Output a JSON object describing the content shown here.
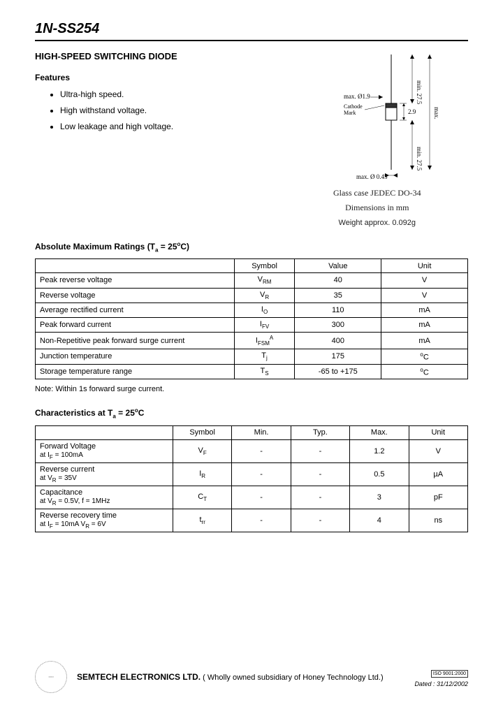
{
  "part_number": "1N-SS254",
  "subtitle": "HIGH-SPEED SWITCHING DIODE",
  "features_label": "Features",
  "features": [
    "Ultra-high speed.",
    "High withstand voltage.",
    "Low leakage and high voltage."
  ],
  "package": {
    "dim_top_lead": "min. 27.5",
    "dim_body_marker": "max. Ø1.9",
    "dim_body_len": "2.9",
    "dim_total": "max.",
    "dim_bot_lead": "min. 27.5",
    "dim_lead_dia": "max. Ø 0.45",
    "cathode_label": "Cathode\nMark",
    "case_line": "Glass case JEDEC DO-34",
    "dim_line": "Dimensions in mm",
    "weight": "Weight approx. 0.092g"
  },
  "ratings_title_a": "Absolute Maximum Ratings (T",
  "ratings_title_b": " = 25",
  "ratings_title_c": "C)",
  "ratings_headers": [
    "",
    "Symbol",
    "Value",
    "Unit"
  ],
  "ratings": [
    {
      "param": "Peak reverse voltage",
      "sym": "V",
      "sub": "RM",
      "val": "40",
      "unit": "V"
    },
    {
      "param": "Reverse voltage",
      "sym": "V",
      "sub": "R",
      "val": "35",
      "unit": "V"
    },
    {
      "param": "Average rectified current",
      "sym": "I",
      "sub": "O",
      "val": "110",
      "unit": "mA"
    },
    {
      "param": "Peak forward current",
      "sym": "I",
      "sub": "FV",
      "val": "300",
      "unit": "mA"
    },
    {
      "param": "Non-Repetitive peak forward surge current",
      "sym": "I",
      "sub": "FSM",
      "supA": "A",
      "val": "400",
      "unit": "mA"
    },
    {
      "param": "Junction temperature",
      "sym": "T",
      "sub": "j",
      "val": "175",
      "unit_deg": true,
      "unit": "C"
    },
    {
      "param": "Storage temperature range",
      "sym": "T",
      "sub": "S",
      "val": "-65 to +175",
      "unit_deg": true,
      "unit": "C"
    }
  ],
  "ratings_note": "Note: Within 1s forward surge current.",
  "char_title_a": "Characteristics at T",
  "char_title_b": " = 25",
  "char_title_c": "C",
  "char_headers": [
    "",
    "Symbol",
    "Min.",
    "Typ.",
    "Max.",
    "Unit"
  ],
  "chars": [
    {
      "p1": "Forward Voltage",
      "p2a": "at I",
      "p2b": " = 100mA",
      "psub": "F",
      "sym": "V",
      "ssub": "F",
      "min": "-",
      "typ": "-",
      "max": "1.2",
      "unit": "V"
    },
    {
      "p1": "Reverse current",
      "p2a": "at V",
      "p2b": " = 35V",
      "psub": "R",
      "sym": "I",
      "ssub": "R",
      "min": "-",
      "typ": "-",
      "max": "0.5",
      "unit": "µA"
    },
    {
      "p1": "Capacitance",
      "p2a": "at V",
      "p2b": " = 0.5V, f = 1MHz",
      "psub": "R",
      "sym": "C",
      "ssub": "T",
      "min": "-",
      "typ": "-",
      "max": "3",
      "unit": "pF"
    },
    {
      "p1": "Reverse recovery time",
      "p2a": "at I",
      "p2b": " = 10mA V",
      "psub": "F",
      "p2c": " = 6V",
      "psub2": "R",
      "sym": "t",
      "ssub": "rr",
      "min": "-",
      "typ": "-",
      "max": "4",
      "unit": "ns"
    }
  ],
  "footer": {
    "company": "SEMTECH ELECTRONICS LTD.",
    "sub": " ( Wholly owned subsidiary of Honey Technology Ltd.)",
    "iso": "ISO 9001:2000",
    "date": "Dated : 31/12/2002"
  }
}
